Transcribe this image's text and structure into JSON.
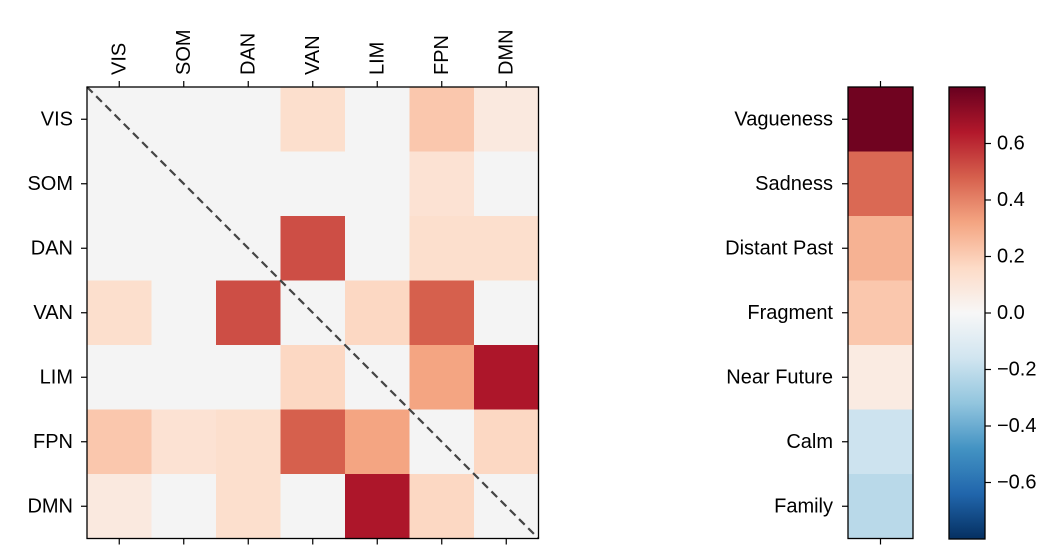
{
  "chart_data": [
    {
      "type": "heatmap",
      "networks": [
        "VIS",
        "SOM",
        "DAN",
        "VAN",
        "LIM",
        "FPN",
        "DMN"
      ],
      "values": [
        [
          0.0,
          0.0,
          0.0,
          0.14,
          0.0,
          0.22,
          0.08
        ],
        [
          0.0,
          0.0,
          0.0,
          0.0,
          0.0,
          0.12,
          0.0
        ],
        [
          0.0,
          0.0,
          0.0,
          0.52,
          0.0,
          0.14,
          0.14
        ],
        [
          0.14,
          0.0,
          0.52,
          0.0,
          0.17,
          0.48,
          0.0
        ],
        [
          0.0,
          0.0,
          0.0,
          0.17,
          0.0,
          0.32,
          0.65
        ],
        [
          0.22,
          0.12,
          0.14,
          0.48,
          0.32,
          0.0,
          0.17
        ],
        [
          0.08,
          0.0,
          0.14,
          0.0,
          0.65,
          0.17,
          0.0
        ]
      ],
      "diagonal_line": "dashed",
      "vmin": -0.8,
      "vmax": 0.8,
      "colormap": "RdBu_r",
      "nan_color": "#f4f4f4"
    },
    {
      "type": "heatmap",
      "categories": [
        "Vagueness",
        "Sadness",
        "Distant Past",
        "Fragment",
        "Near Future",
        "Calm",
        "Family"
      ],
      "values": [
        0.78,
        0.46,
        0.28,
        0.22,
        0.07,
        -0.17,
        -0.22
      ],
      "vmin": -0.8,
      "vmax": 0.8,
      "colormap": "RdBu_r"
    },
    {
      "type": "colorbar",
      "vmin": -0.8,
      "vmax": 0.8,
      "ticks": [
        0.6,
        0.4,
        0.2,
        0.0,
        -0.2,
        -0.4,
        -0.6
      ],
      "tick_labels": [
        "0.6",
        "0.4",
        "0.2",
        "0.0",
        "−0.2",
        "−0.4",
        "−0.6"
      ]
    }
  ]
}
